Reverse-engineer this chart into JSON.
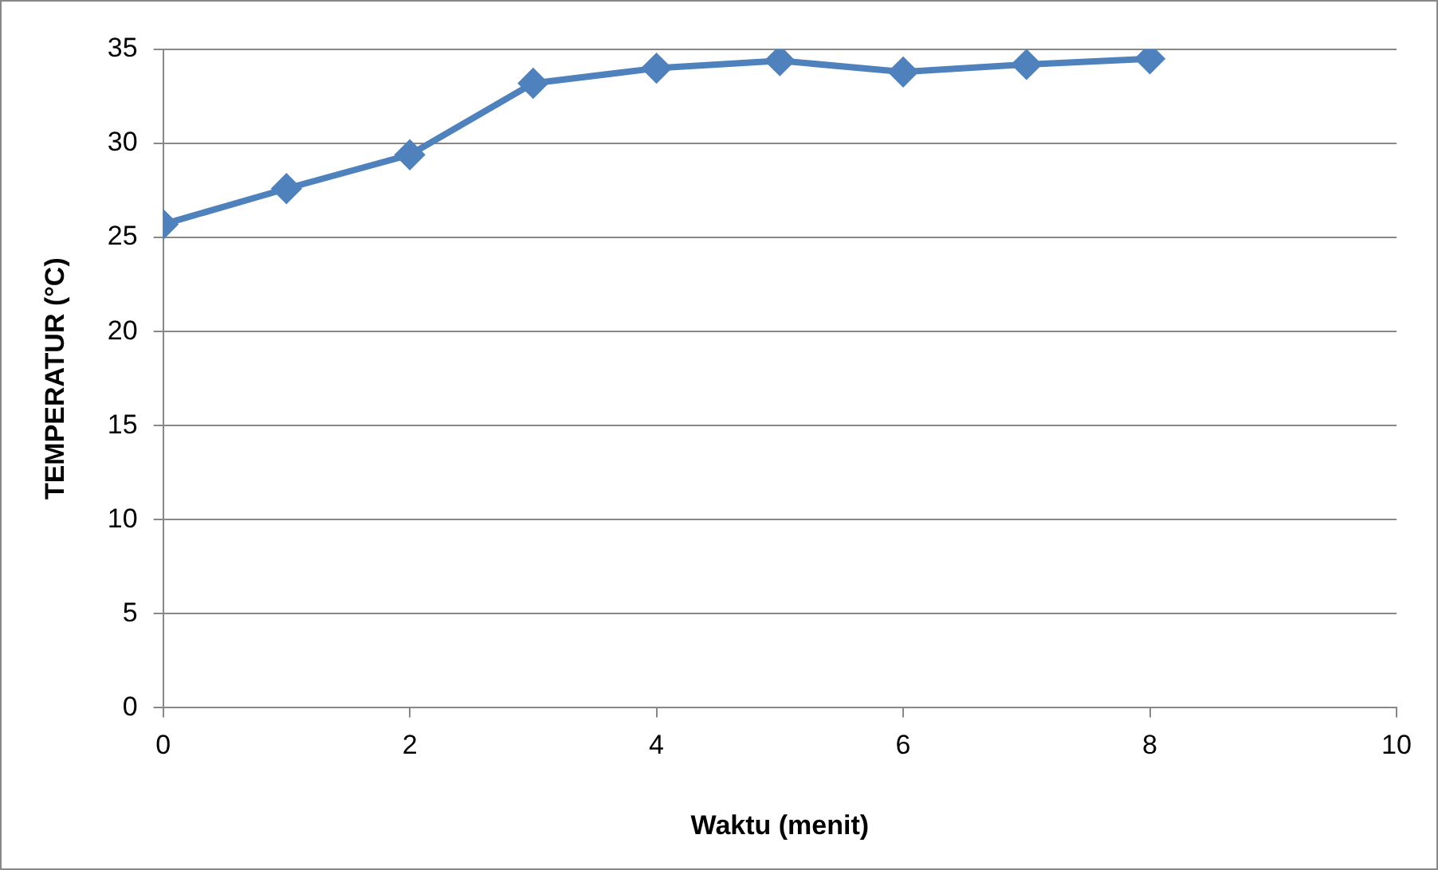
{
  "chart_data": {
    "type": "line",
    "xlabel": "Waktu (menit)",
    "ylabel": "TEMPERATUR (°C)",
    "x": [
      0,
      1,
      2,
      3,
      4,
      5,
      6,
      7,
      8
    ],
    "series": [
      {
        "color": "#4f81bd",
        "values": [
          25.7,
          27.6,
          29.4,
          33.2,
          34.0,
          34.4,
          33.8,
          34.2,
          34.5
        ]
      }
    ],
    "xlim": [
      0,
      10
    ],
    "xticks": [
      0,
      2,
      4,
      6,
      8,
      10
    ],
    "ylim": [
      0,
      35
    ],
    "yticks": [
      0,
      5,
      10,
      15,
      20,
      25,
      30,
      35
    ],
    "grid": "y",
    "legend": false,
    "marker": "diamond",
    "line_style": "solid"
  }
}
